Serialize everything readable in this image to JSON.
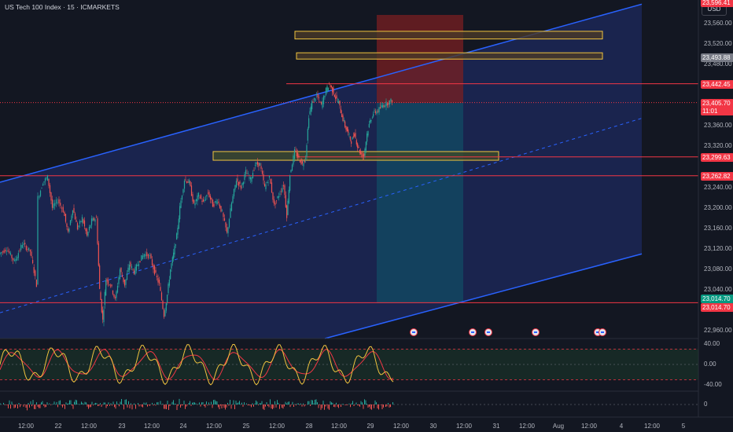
{
  "header": {
    "title": "US Tech 100 Index · 15 · ICMARKETS",
    "currency_button": "USD"
  },
  "colors": {
    "background": "#131722",
    "channel_line": "#2962ff",
    "channel_fill": "#1e2a5e",
    "zone_border": "#f0c43f",
    "stop_zone": "#7a1f22",
    "target_zone": "#0e5a6b",
    "level_line": "#f23645",
    "candle_up": "#26a69a",
    "candle_down": "#ef5350",
    "oscillator_fast": "#f0c43f",
    "oscillator_slow": "#f23645"
  },
  "chart_data": {
    "type": "candlestick",
    "symbol": "US Tech 100 Index",
    "timeframe": "15",
    "broker": "ICMARKETS",
    "ylim": [
      22920,
      23600
    ],
    "y_ticks": [
      {
        "value": 23560,
        "label": "23,560.00"
      },
      {
        "value": 23520,
        "label": "23,520.00"
      },
      {
        "value": 23480,
        "label": "23,480.00"
      },
      {
        "value": 23400,
        "label": "23,400.00"
      },
      {
        "value": 23360,
        "label": "23,360.00"
      },
      {
        "value": 23320,
        "label": "23,320.00"
      },
      {
        "value": 23240,
        "label": "23,240.00"
      },
      {
        "value": 23200,
        "label": "23,200.00"
      },
      {
        "value": 23160,
        "label": "23,160.00"
      },
      {
        "value": 23120,
        "label": "23,120.00"
      },
      {
        "value": 23080,
        "label": "23,080.00"
      },
      {
        "value": 23040,
        "label": "23,040.00"
      },
      {
        "value": 22960,
        "label": "22,960.00"
      }
    ],
    "price_tags": [
      {
        "value": 23596,
        "label": "23,596.41",
        "color": "#f23645"
      },
      {
        "value": 23493.88,
        "label": "23,493.88",
        "color": "#787b86"
      },
      {
        "value": 23442.45,
        "label": "23,442.45",
        "color": "#f23645"
      },
      {
        "value": 23405.7,
        "label": "23,405.70",
        "sublabel": "11:01",
        "color": "#f23645"
      },
      {
        "value": 23299.63,
        "label": "23,299.63",
        "color": "#f23645"
      },
      {
        "value": 23262.82,
        "label": "23,262.82",
        "color": "#f23645"
      },
      {
        "value": 23014.7,
        "label": "23,014.70",
        "color": "#089981"
      },
      {
        "value": 23014.7,
        "label": "23,014.70",
        "color": "#f23645"
      }
    ],
    "x_ticks": [
      "12:00",
      "22",
      "12:00",
      "23",
      "12:00",
      "24",
      "12:00",
      "25",
      "12:00",
      "28",
      "12:00",
      "29",
      "12:00",
      "30",
      "12:00",
      "31",
      "12:00",
      "Aug",
      "12:00",
      "4",
      "12:00",
      "5"
    ],
    "price_path": [
      [
        0,
        23110
      ],
      [
        10,
        23120
      ],
      [
        20,
        23095
      ],
      [
        30,
        23130
      ],
      [
        40,
        23115
      ],
      [
        48,
        23050
      ],
      [
        50,
        23220
      ],
      [
        56,
        23250
      ],
      [
        62,
        23260
      ],
      [
        68,
        23200
      ],
      [
        75,
        23215
      ],
      [
        82,
        23195
      ],
      [
        88,
        23150
      ],
      [
        94,
        23200
      ],
      [
        100,
        23160
      ],
      [
        106,
        23180
      ],
      [
        112,
        23145
      ],
      [
        118,
        23175
      ],
      [
        124,
        23180
      ],
      [
        128,
        23040
      ],
      [
        132,
        22980
      ],
      [
        136,
        23060
      ],
      [
        142,
        23050
      ],
      [
        148,
        23020
      ],
      [
        154,
        23080
      ],
      [
        160,
        23050
      ],
      [
        166,
        23090
      ],
      [
        172,
        23075
      ],
      [
        178,
        23095
      ],
      [
        185,
        23110
      ],
      [
        192,
        23105
      ],
      [
        198,
        23075
      ],
      [
        204,
        23050
      ],
      [
        210,
        22990
      ],
      [
        214,
        23030
      ],
      [
        218,
        23080
      ],
      [
        222,
        23110
      ],
      [
        226,
        23145
      ],
      [
        230,
        23200
      ],
      [
        236,
        23255
      ],
      [
        242,
        23250
      ],
      [
        248,
        23205
      ],
      [
        254,
        23225
      ],
      [
        260,
        23210
      ],
      [
        266,
        23230
      ],
      [
        272,
        23205
      ],
      [
        278,
        23215
      ],
      [
        284,
        23190
      ],
      [
        290,
        23150
      ],
      [
        296,
        23210
      ],
      [
        302,
        23255
      ],
      [
        308,
        23240
      ],
      [
        314,
        23270
      ],
      [
        320,
        23255
      ],
      [
        326,
        23285
      ],
      [
        332,
        23285
      ],
      [
        338,
        23240
      ],
      [
        344,
        23260
      ],
      [
        350,
        23205
      ],
      [
        356,
        23225
      ],
      [
        362,
        23245
      ],
      [
        366,
        23185
      ],
      [
        370,
        23265
      ],
      [
        376,
        23310
      ],
      [
        380,
        23300
      ],
      [
        386,
        23285
      ],
      [
        390,
        23300
      ],
      [
        394,
        23380
      ],
      [
        398,
        23405
      ],
      [
        404,
        23420
      ],
      [
        410,
        23400
      ],
      [
        416,
        23430
      ],
      [
        420,
        23442
      ],
      [
        424,
        23430
      ],
      [
        428,
        23415
      ],
      [
        432,
        23405
      ],
      [
        436,
        23380
      ],
      [
        440,
        23360
      ],
      [
        444,
        23345
      ],
      [
        448,
        23330
      ],
      [
        452,
        23345
      ],
      [
        456,
        23320
      ],
      [
        460,
        23305
      ],
      [
        464,
        23302
      ],
      [
        468,
        23345
      ],
      [
        472,
        23370
      ],
      [
        476,
        23385
      ],
      [
        482,
        23390
      ],
      [
        488,
        23400
      ],
      [
        494,
        23405
      ],
      [
        500,
        23410
      ]
    ],
    "channel": {
      "upper": [
        [
          0,
          23250
        ],
        [
          816,
          23598
        ]
      ],
      "lower": [
        [
          413,
          22920
        ],
        [
          816,
          23110
        ]
      ],
      "mid": [
        [
          0,
          22995
        ],
        [
          816,
          23375
        ]
      ]
    },
    "zones": [
      {
        "from": 23530,
        "to": 23545,
        "x_start": 375,
        "x_end": 766
      },
      {
        "from": 23493.88,
        "to": 23503,
        "x_start": 377,
        "x_end": 766
      },
      {
        "from": 23293,
        "to": 23310,
        "x_start": 271,
        "x_end": 634
      }
    ],
    "position_tool": {
      "entry": 23405,
      "stop": 23580,
      "target": 23014.7,
      "x_start": 479,
      "x_end": 589
    },
    "horizontal_levels": [
      {
        "value": 23442.45,
        "x_start": 364
      },
      {
        "value": 23405.7,
        "x_start": 0,
        "dotted": true
      },
      {
        "value": 23299.63,
        "x_start": 379
      },
      {
        "value": 23262.82,
        "x_start": 0
      },
      {
        "value": 23014.7,
        "x_start": 0
      }
    ],
    "events_x": [
      526,
      601,
      621,
      681,
      760,
      766
    ],
    "oscillator": {
      "ylim": [
        -60,
        60
      ],
      "y_ticks": [
        {
          "value": 40,
          "label": "40.00"
        },
        {
          "value": 0,
          "label": "0.00"
        },
        {
          "value": -40,
          "label": "-40.00"
        }
      ],
      "levels": [
        30,
        -30
      ]
    },
    "volume_panel": {
      "y_ticks": [
        {
          "value": 0,
          "label": "0"
        }
      ]
    }
  }
}
